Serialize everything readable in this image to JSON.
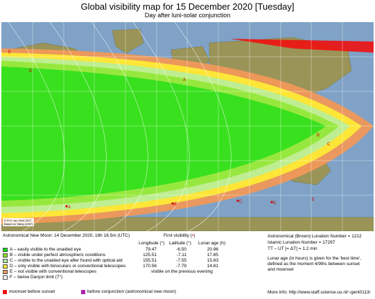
{
  "header": {
    "title": "Global visibility map for 15 December 2020 [Tuesday]",
    "subtitle": "Day after luni-solar conjunction"
  },
  "map": {
    "copyright_line1": "© R.H. van Gent 2017",
    "copyright_line2": "Based on Yallop (1997)",
    "zone_letters": [
      "A",
      "B",
      "C",
      "D",
      "E",
      "A",
      "B",
      "C",
      "D",
      "E"
    ]
  },
  "new_moon": "Astronomical New Moon: 14 December 2020, 16h 16.5m (UTC)",
  "first_visibility": {
    "label": "First visibility (",
    "marker": "•",
    "label_end": ")",
    "columns": [
      "Longitude (°)",
      "Latitude (°)",
      "Lunar age (h)"
    ]
  },
  "legend": [
    {
      "color": "#11dd11",
      "text": "A – easily visible to the unaided eye",
      "lon": "79.47",
      "lat": "-6.50",
      "age": "20.96"
    },
    {
      "color": "#8ae623",
      "text": "B – visible under perfect atmospheric conditions",
      "lon": "125.51",
      "lat": "-7.11",
      "age": "17.85"
    },
    {
      "color": "#aef0a8",
      "text": "C – visible to the unaided eye after found with optical aid",
      "lon": "155.51",
      "lat": "-7.55",
      "age": "15.83"
    },
    {
      "color": "#ffee33",
      "text": "D – only visible with binoculars or conventional telescopes",
      "lon": "170.56",
      "lat": "-7.79",
      "age": "14.81"
    },
    {
      "color": "#f0985a",
      "text": "E – not visible with conventional telescopes",
      "previous": "visible on the previous evening"
    },
    {
      "color": "#ffffff",
      "text": "F – below Danjon limit (7°)"
    }
  ],
  "right": {
    "lunation_brown": "Astronomical (Brown) Lunation Number = 1212",
    "lunation_islamic": "Islamic Lunation Number = 17297",
    "delta_t": "TT – UT [= ΔT] = 1.2 min",
    "lunar_age_1": "Lunar age (in hours) is given for the 'best time',",
    "lunar_age_2": "defined as the moment 4/9ths between sunset",
    "lunar_age_3": "and moonset",
    "more_info": "More info: http://www.staff.science.uu.nl/~gent0113/"
  },
  "footer": [
    {
      "color": "#ee1111",
      "text": "moonset before sunset"
    },
    {
      "color": "#aa22aa",
      "text": "before conjunction (astronomical new moon)"
    }
  ]
}
